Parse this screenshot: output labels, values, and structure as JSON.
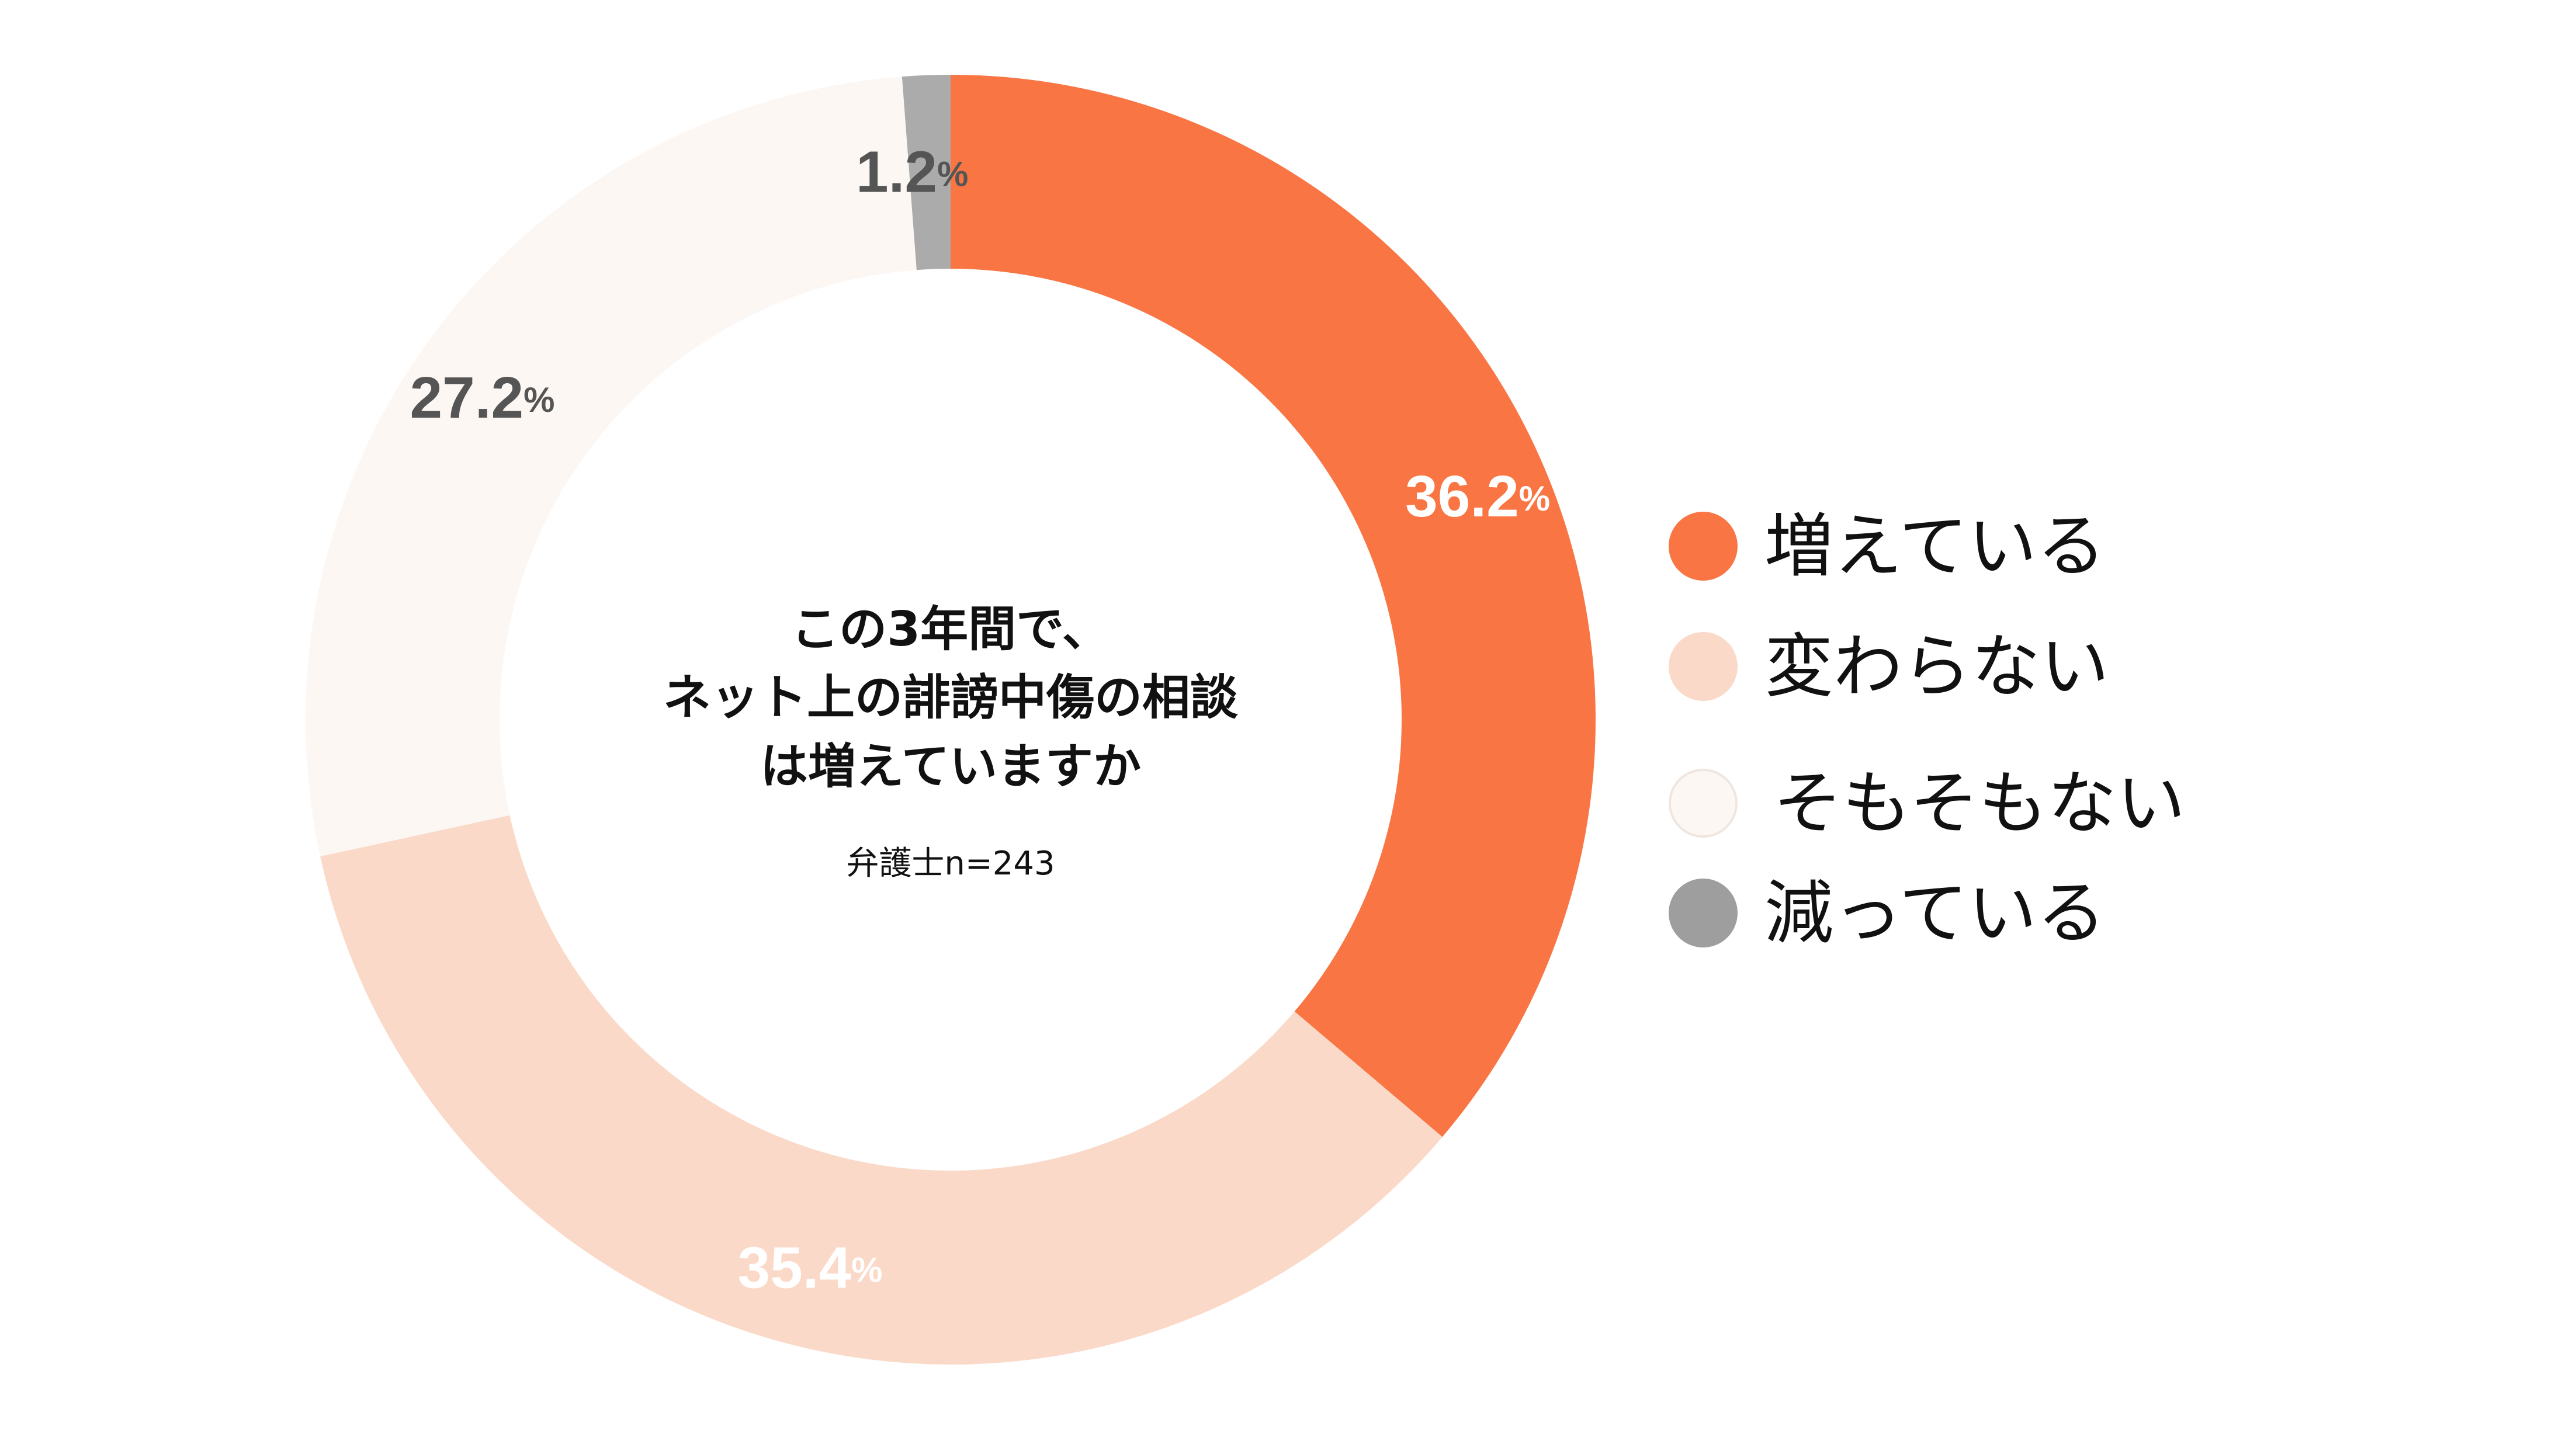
{
  "chart_data": {
    "type": "pie",
    "variant": "donut",
    "categories": [
      "増えている",
      "変わらない",
      "そもそもない",
      "減っている"
    ],
    "values": [
      36.2,
      35.4,
      27.2,
      1.2
    ],
    "unit": "%",
    "colors": [
      "#F97644",
      "#FAD9C8",
      "#FDF7F3",
      "#ABABAB"
    ],
    "label_colors": [
      "#FFFFFF",
      "#FFFFFF",
      "#555555",
      "#555555"
    ],
    "start_angle_deg": 0,
    "direction": "clockwise",
    "center_text": {
      "title_lines": [
        "この3年間で、",
        "ネット上の誹謗中傷の相談",
        "は増えていますか"
      ],
      "note": "弁護士n=243"
    },
    "legend": {
      "placement": "right",
      "items": [
        {
          "label": "増えている",
          "color": "#F97644",
          "border": "#F97644"
        },
        {
          "label": "変わらない",
          "color": "#FAD9C8",
          "border": "#FAD9C8"
        },
        {
          "label": "そもそもない",
          "color": "#FDF7F3",
          "border": "#EFE6E0"
        },
        {
          "label": "減っている",
          "color": "#9E9E9E",
          "border": "#9E9E9E"
        }
      ]
    }
  }
}
